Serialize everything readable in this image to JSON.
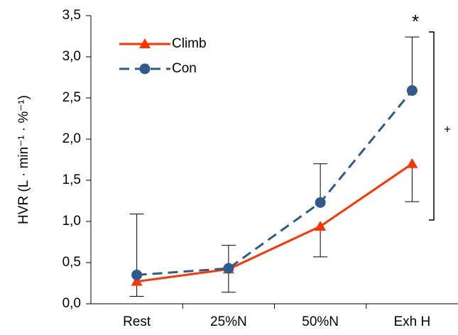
{
  "chart_data": {
    "type": "line",
    "y_label": "HVR (L · min⁻¹ · %⁻¹)",
    "categories": [
      "Rest",
      "25%N",
      "50%N",
      "Exh H"
    ],
    "series": [
      {
        "name": "Climb",
        "color": "#ff3300",
        "marker": "triangle",
        "dash": "solid",
        "values": [
          0.27,
          0.42,
          0.94,
          1.7
        ],
        "errors": [
          0.18,
          0.28,
          0.37,
          0.46
        ],
        "error_direction": "down"
      },
      {
        "name": "Con",
        "color": "#2f5b8c",
        "marker": "circle",
        "dash": "dashed",
        "values": [
          0.35,
          0.43,
          1.23,
          2.59
        ],
        "errors": [
          0.74,
          0.28,
          0.47,
          0.65
        ],
        "error_direction": "up"
      }
    ],
    "ylim": [
      0,
      3.5
    ],
    "yticks": [
      {
        "value": 0,
        "label": "0,0"
      },
      {
        "value": 0.5,
        "label": "0,5"
      },
      {
        "value": 1.0,
        "label": "1,0"
      },
      {
        "value": 1.5,
        "label": "1,5"
      },
      {
        "value": 2.0,
        "label": "2,0"
      },
      {
        "value": 2.5,
        "label": "2,5"
      },
      {
        "value": 3.0,
        "label": "3,0"
      },
      {
        "value": 3.5,
        "label": "3,5"
      }
    ],
    "annotations": [
      "*",
      "+"
    ],
    "legend": "top-left"
  }
}
